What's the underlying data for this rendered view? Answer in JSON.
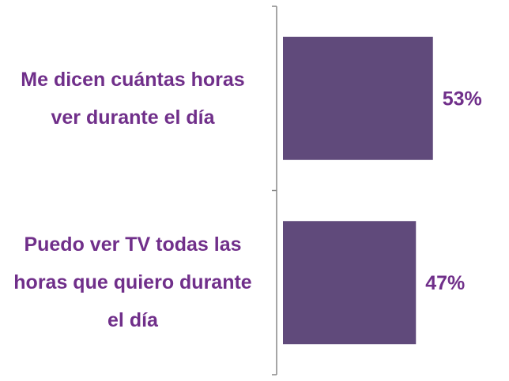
{
  "chart_data": {
    "type": "bar",
    "orientation": "horizontal",
    "categories": [
      "Me dicen cuántas horas ver durante el día",
      "Puedo ver TV todas las horas que quiero durante el día"
    ],
    "values": [
      53,
      47
    ],
    "value_labels": [
      "53%",
      "47%"
    ],
    "color": "#604a7b"
  }
}
